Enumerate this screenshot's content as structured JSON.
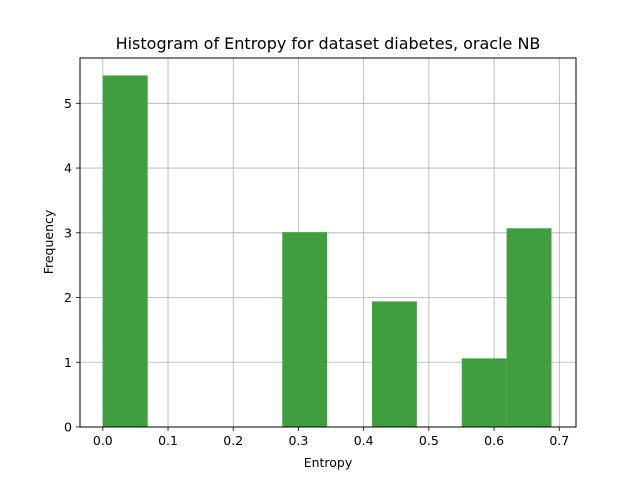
{
  "chart_data": {
    "type": "bar",
    "title": "Histogram of Entropy for dataset diabetes, oracle NB",
    "xlabel": "Entropy",
    "ylabel": "Frequency",
    "xlim": [
      -0.035,
      0.7256
    ],
    "ylim": [
      0,
      5.7
    ],
    "grid": true,
    "bar_color": "#3f9f3f",
    "bins": [
      {
        "start": 0.0,
        "end": 0.0688,
        "value": 5.43
      },
      {
        "start": 0.0688,
        "end": 0.1376,
        "value": 0
      },
      {
        "start": 0.1376,
        "end": 0.2064,
        "value": 0
      },
      {
        "start": 0.2064,
        "end": 0.2752,
        "value": 0
      },
      {
        "start": 0.2752,
        "end": 0.344,
        "value": 3.01
      },
      {
        "start": 0.344,
        "end": 0.4128,
        "value": 0
      },
      {
        "start": 0.4128,
        "end": 0.4816,
        "value": 1.94
      },
      {
        "start": 0.4816,
        "end": 0.5504,
        "value": 0
      },
      {
        "start": 0.5504,
        "end": 0.6192,
        "value": 1.06
      },
      {
        "start": 0.6192,
        "end": 0.688,
        "value": 3.07
      }
    ],
    "x_ticks": [
      {
        "value": 0.0,
        "label": "0.0"
      },
      {
        "value": 0.1,
        "label": "0.1"
      },
      {
        "value": 0.2,
        "label": "0.2"
      },
      {
        "value": 0.3,
        "label": "0.3"
      },
      {
        "value": 0.4,
        "label": "0.4"
      },
      {
        "value": 0.5,
        "label": "0.5"
      },
      {
        "value": 0.6,
        "label": "0.6"
      },
      {
        "value": 0.7,
        "label": "0.7"
      }
    ],
    "y_ticks": [
      {
        "value": 0,
        "label": "0"
      },
      {
        "value": 1,
        "label": "1"
      },
      {
        "value": 2,
        "label": "2"
      },
      {
        "value": 3,
        "label": "3"
      },
      {
        "value": 4,
        "label": "4"
      },
      {
        "value": 5,
        "label": "5"
      }
    ]
  }
}
